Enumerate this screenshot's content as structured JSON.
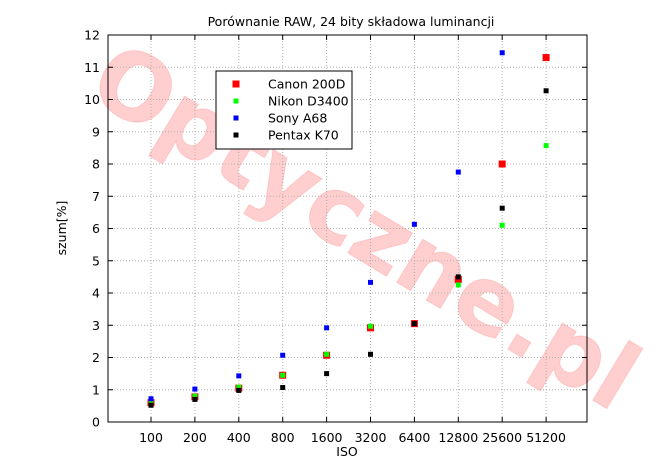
{
  "watermark": {
    "text": "Optyczne.pl",
    "color": "#ff8080"
  },
  "chart_data": {
    "type": "scatter",
    "title": "Porównanie RAW, 24 bity składowa luminancji",
    "xlabel": "ISO",
    "ylabel": "szum[%]",
    "x_scale": "log2",
    "categories": [
      "100",
      "200",
      "400",
      "800",
      "1600",
      "3200",
      "6400",
      "12800",
      "25600",
      "51200"
    ],
    "ylim": [
      0,
      12
    ],
    "yticks": [
      0,
      1,
      2,
      3,
      4,
      5,
      6,
      7,
      8,
      9,
      10,
      11,
      12
    ],
    "grid": true,
    "legend_position": "top-left",
    "series": [
      {
        "name": "Canon 200D",
        "color": "#ff0000",
        "marker": "square-large",
        "values": [
          0.6,
          0.78,
          1.05,
          1.45,
          2.07,
          2.92,
          3.05,
          4.42,
          8.0,
          11.3
        ]
      },
      {
        "name": "Nikon D3400",
        "color": "#00ff00",
        "marker": "square-small",
        "values": [
          0.62,
          0.8,
          1.08,
          1.45,
          2.1,
          2.97,
          null,
          4.25,
          6.1,
          8.57
        ]
      },
      {
        "name": "Sony A68",
        "color": "#0000ff",
        "marker": "square-small",
        "values": [
          0.72,
          1.02,
          1.43,
          2.07,
          2.92,
          4.33,
          6.13,
          7.75,
          11.45,
          null
        ]
      },
      {
        "name": "Pentax K70",
        "color": "#000000",
        "marker": "square-small",
        "values": [
          0.52,
          0.7,
          0.98,
          1.07,
          1.5,
          2.1,
          3.05,
          4.5,
          6.63,
          10.27
        ]
      }
    ]
  }
}
